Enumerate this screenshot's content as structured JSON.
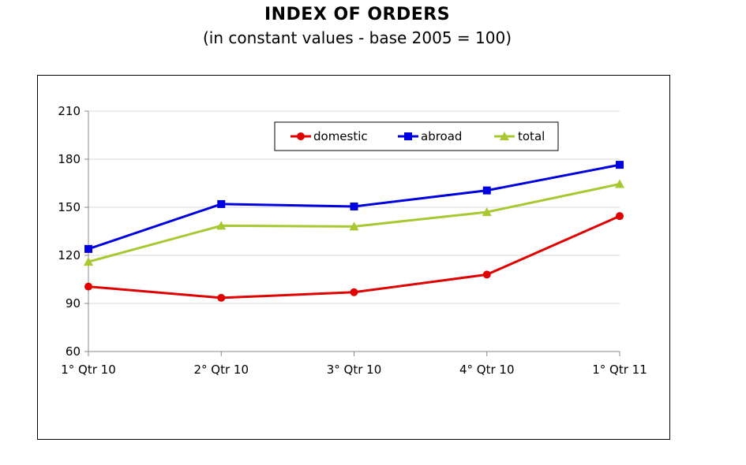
{
  "chart_data": {
    "type": "line",
    "title": "INDEX OF ORDERS",
    "subtitle": "(in constant values - base 2005 = 100)",
    "categories": [
      "1° Qtr 10",
      "2° Qtr 10",
      "3° Qtr 10",
      "4° Qtr 10",
      "1° Qtr 11"
    ],
    "ylim": [
      60,
      210
    ],
    "yticks": [
      60,
      90,
      120,
      150,
      180,
      210
    ],
    "grid": true,
    "legend_position": "top-right",
    "series": [
      {
        "name": "domestic",
        "marker": "circle",
        "color": "#e00000",
        "values": [
          100.5,
          93.5,
          97,
          108,
          144.5
        ]
      },
      {
        "name": "abroad",
        "marker": "square",
        "color": "#0000e0",
        "values": [
          124,
          152,
          150.5,
          160.5,
          176.5
        ]
      },
      {
        "name": "total",
        "marker": "triangle",
        "color": "#a8c832",
        "values": [
          116,
          138.5,
          138,
          147,
          164.5
        ]
      }
    ]
  }
}
